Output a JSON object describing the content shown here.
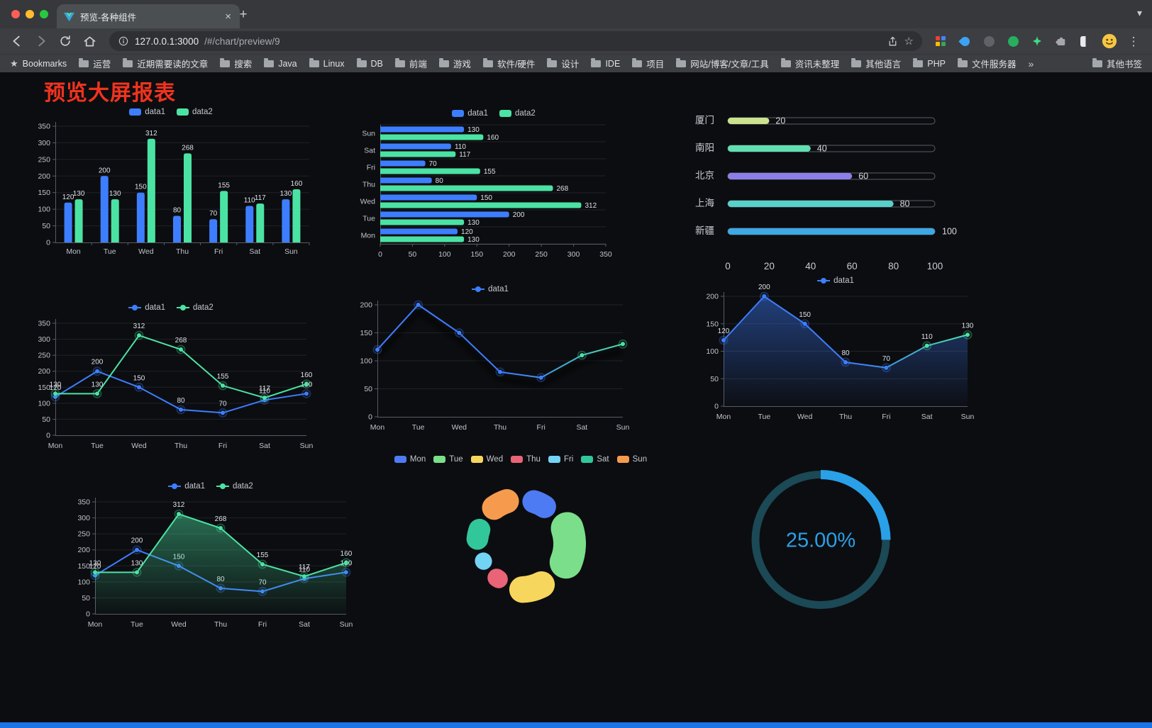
{
  "browser": {
    "tab": {
      "title": "预览-各种组件"
    },
    "close_symbol": "×",
    "new_tab_symbol": "+",
    "tab_search_symbol": "▾",
    "menu_symbol": "⋮",
    "url": {
      "host": "127.0.0.1:3000",
      "path": "/#/chart/preview/9",
      "full": "127.0.0.1:3000/#/chart/preview/9"
    },
    "omnibox_star_symbol": "☆",
    "bookmarks_bar": {
      "star_symbol": "★",
      "bookmarks_label": "Bookmarks",
      "folders": [
        "运营",
        "近期需要读的文章",
        "搜索",
        "Java",
        "Linux",
        "DB",
        "前端",
        "游戏",
        "软件/硬件",
        "设计",
        "IDE",
        "项目",
        "网站/博客/文章/工具",
        "资讯未整理",
        "其他语言",
        "PHP",
        "文件服务器"
      ],
      "overflow_symbol": "»",
      "other_bookmarks_label": "其他书签"
    }
  },
  "page": {
    "title": "预览大屏报表",
    "title_color": "#F0331F",
    "background": "#0C0D10",
    "accent_bar_color": "#1A73E8"
  },
  "charts": [
    {
      "name": "grouped-bar",
      "type": "bar",
      "legend_marker": "rect",
      "legend": [
        {
          "name": "data1",
          "color": "#3D7EFF"
        },
        {
          "name": "data2",
          "color": "#4BE3A4"
        }
      ],
      "categories": [
        "Mon",
        "Tue",
        "Wed",
        "Thu",
        "Fri",
        "Sat",
        "Sun"
      ],
      "series": [
        {
          "name": "data1",
          "color": "#3D7EFF",
          "values": [
            120,
            200,
            150,
            80,
            70,
            110,
            130
          ]
        },
        {
          "name": "data2",
          "color": "#4BE3A4",
          "values": [
            130,
            130,
            312,
            268,
            155,
            117,
            160
          ]
        }
      ],
      "y": {
        "min": 0,
        "max": 350,
        "step": 50
      },
      "show_labels": true
    },
    {
      "name": "horizontal-bar",
      "type": "hbar",
      "legend_marker": "rect",
      "legend": [
        {
          "name": "data1",
          "color": "#3D7EFF"
        },
        {
          "name": "data2",
          "color": "#4BE3A4"
        }
      ],
      "categories": [
        "Mon",
        "Tue",
        "Wed",
        "Thu",
        "Fri",
        "Sat",
        "Sun"
      ],
      "series": [
        {
          "name": "data1",
          "color": "#3D7EFF",
          "values": [
            120,
            200,
            150,
            80,
            70,
            110,
            130
          ]
        },
        {
          "name": "data2",
          "color": "#4BE3A4",
          "values": [
            130,
            130,
            312,
            268,
            155,
            117,
            160
          ]
        }
      ],
      "x": {
        "min": 0,
        "max": 350,
        "step": 50
      },
      "show_labels": true
    },
    {
      "name": "city-progress",
      "type": "progress",
      "max": 100,
      "axis_ticks": [
        0,
        20,
        40,
        60,
        80,
        100
      ],
      "rows": [
        {
          "label": "厦门",
          "value": 20,
          "color": "#CCE28E"
        },
        {
          "label": "南阳",
          "value": 40,
          "color": "#62DFB2"
        },
        {
          "label": "北京",
          "value": 60,
          "color": "#8B80E9"
        },
        {
          "label": "上海",
          "value": 80,
          "color": "#58D1CB"
        },
        {
          "label": "新疆",
          "value": 100,
          "color": "#3EA7E4"
        }
      ]
    },
    {
      "name": "multi-line",
      "type": "line",
      "legend_marker": "line",
      "legend": [
        {
          "name": "data1",
          "color": "#3D7EFF"
        },
        {
          "name": "data2",
          "color": "#4BE3A4"
        }
      ],
      "categories": [
        "Mon",
        "Tue",
        "Wed",
        "Thu",
        "Fri",
        "Sat",
        "Sun"
      ],
      "series": [
        {
          "name": "data1",
          "color": "#3D7EFF",
          "values": [
            120,
            200,
            150,
            80,
            70,
            110,
            130
          ]
        },
        {
          "name": "data2",
          "color": "#4BE3A4",
          "values": [
            130,
            130,
            312,
            268,
            155,
            117,
            160
          ]
        }
      ],
      "y": {
        "min": 0,
        "max": 350,
        "step": 50
      },
      "show_labels": true
    },
    {
      "name": "gradient-line",
      "type": "line",
      "legend_marker": "line",
      "legend": [
        {
          "name": "data1",
          "color": "#3D7EFF"
        }
      ],
      "categories": [
        "Mon",
        "Tue",
        "Wed",
        "Thu",
        "Fri",
        "Sat",
        "Sun"
      ],
      "series": [
        {
          "name": "data1",
          "color": "#3D7EFF",
          "color_end": "#4BE3A4",
          "gradient": true,
          "values": [
            120,
            200,
            150,
            80,
            70,
            110,
            130
          ]
        }
      ],
      "y": {
        "min": 0,
        "max": 200,
        "step": 50
      },
      "show_labels": false,
      "shadow": true
    },
    {
      "name": "area-line",
      "type": "line",
      "legend_marker": "line",
      "legend": [
        {
          "name": "data1",
          "color": "#3D7EFF"
        }
      ],
      "categories": [
        "Mon",
        "Tue",
        "Wed",
        "Thu",
        "Fri",
        "Sat",
        "Sun"
      ],
      "series": [
        {
          "name": "data1",
          "color": "#3D7EFF",
          "color_end": "#4BE3A4",
          "gradient": true,
          "area": "#3D7EFF",
          "values": [
            120,
            200,
            150,
            80,
            70,
            110,
            130
          ]
        }
      ],
      "y": {
        "min": 0,
        "max": 200,
        "step": 50
      },
      "show_labels": true
    },
    {
      "name": "two-line-green-area",
      "type": "line",
      "legend_marker": "line",
      "legend": [
        {
          "name": "data1",
          "color": "#3D7EFF"
        },
        {
          "name": "data2",
          "color": "#4BE3A4"
        }
      ],
      "categories": [
        "Mon",
        "Tue",
        "Wed",
        "Thu",
        "Fri",
        "Sat",
        "Sun"
      ],
      "series": [
        {
          "name": "data1",
          "color": "#3D7EFF",
          "values": [
            120,
            200,
            150,
            80,
            70,
            110,
            130
          ]
        },
        {
          "name": "data2",
          "color": "#4BE3A4",
          "area": "#4BE3A4",
          "values": [
            130,
            130,
            312,
            268,
            155,
            117,
            160
          ]
        }
      ],
      "y": {
        "min": 0,
        "max": 350,
        "step": 50
      },
      "show_labels": true
    },
    {
      "name": "rose-donut",
      "type": "rose",
      "legend_marker": "rect",
      "legend": [
        {
          "name": "Mon",
          "color": "#4D7BF3"
        },
        {
          "name": "Tue",
          "color": "#7BDE8B"
        },
        {
          "name": "Wed",
          "color": "#F6D65C"
        },
        {
          "name": "Thu",
          "color": "#E96476"
        },
        {
          "name": "Fri",
          "color": "#72D3F5"
        },
        {
          "name": "Sat",
          "color": "#32C79B"
        },
        {
          "name": "Sun",
          "color": "#F69B4D"
        }
      ],
      "values": [
        120,
        200,
        150,
        80,
        70,
        110,
        130
      ]
    },
    {
      "name": "percent-gauge",
      "type": "gauge",
      "value": 25,
      "display": "25.00%",
      "color": "#2AA0E8",
      "track_color": "#1B4956"
    }
  ]
}
